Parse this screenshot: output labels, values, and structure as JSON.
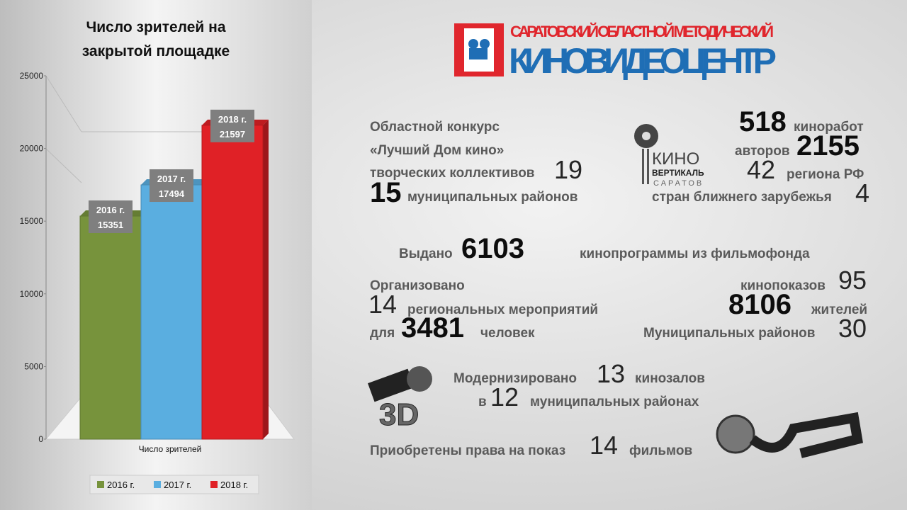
{
  "chart_data": {
    "type": "bar",
    "title": "Число зрителей на закрытой площадке",
    "categories": [
      "Число зрителей"
    ],
    "series": [
      {
        "name": "2016 г.",
        "color": "#77933c",
        "values": [
          15351
        ]
      },
      {
        "name": "2017 г.",
        "color": "#5aaee0",
        "values": [
          17494
        ]
      },
      {
        "name": "2018 г.",
        "color": "#e02126",
        "values": [
          21597
        ]
      }
    ],
    "ylim": [
      0,
      25000
    ],
    "yticks": [
      0,
      5000,
      10000,
      15000,
      20000,
      25000
    ],
    "grid": false,
    "legend": "bottom"
  },
  "logo": {
    "line1": "САРАТОВСКИЙ ОБЛАСТНОЙ МЕТОДИЧЕСКИЙ",
    "line2": "КИНОВИДЕОЦЕНТР"
  },
  "contest": {
    "title": "Областной конкурс",
    "name": "«Лучший Дом кино»",
    "collectives_label": "творческих коллективов",
    "collectives": 19,
    "districts": 15,
    "districts_label": "муниципальных районов"
  },
  "festival": {
    "logo_kino": "КИНО",
    "logo_vertical": "ВЕРТИКАЛЬ",
    "logo_city": "САРАТОВ",
    "films": 518,
    "films_label": "киноработ",
    "authors_label": "авторов",
    "authors": 2155,
    "regions": 42,
    "regions_label": "региона РФ",
    "countries_label": "стран ближнего зарубежья",
    "countries": 4
  },
  "programs": {
    "prefix": "Выдано",
    "count": 6103,
    "suffix": "кинопрограммы из фильмофонда"
  },
  "events": {
    "organized": "Организовано",
    "count": 14,
    "label": "региональных мероприятий",
    "for": "для",
    "people": 3481,
    "people_label": "человек"
  },
  "screenings": {
    "label": "кинопоказов",
    "count": 95,
    "residents": 8106,
    "residents_label": "жителей",
    "districts_label": "Муниципальных районов",
    "districts": 30
  },
  "modernized": {
    "label": "Модернизировано",
    "halls": 13,
    "halls_label": "кинозалов",
    "in": "в",
    "districts": 12,
    "districts_label": "муниципальных районах"
  },
  "rights": {
    "label": "Приобретены права на показ",
    "count": 14,
    "suffix": "фильмов"
  }
}
